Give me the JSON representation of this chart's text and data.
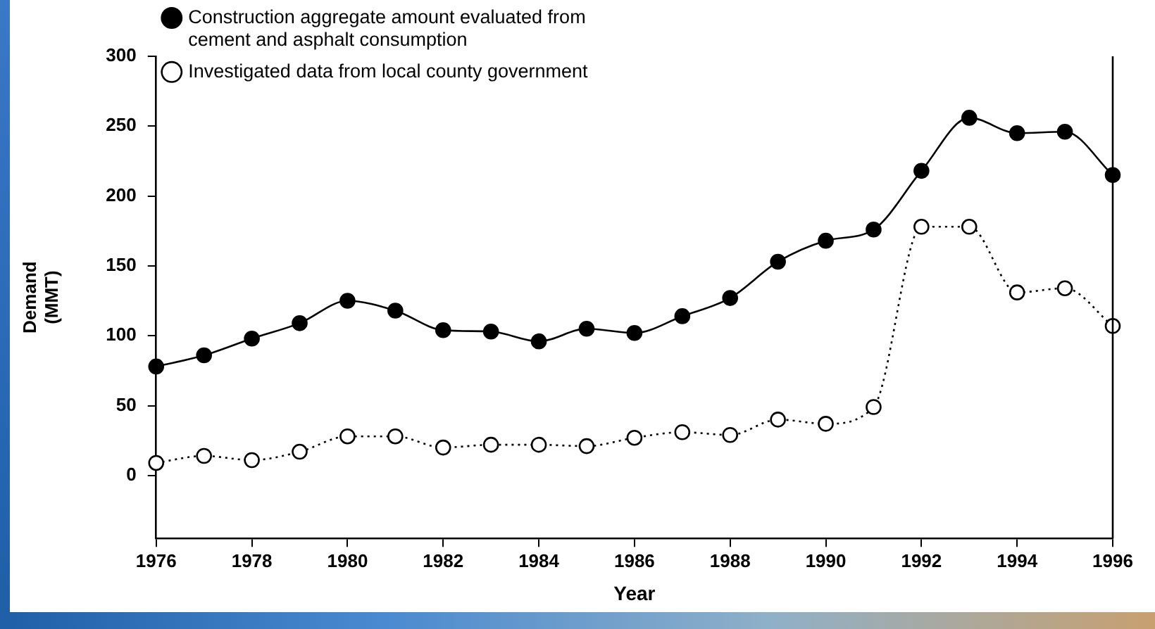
{
  "chart_data": {
    "type": "line",
    "xlabel": "Year",
    "ylabel": "Demand\n(MMT)",
    "x": [
      1976,
      1977,
      1978,
      1979,
      1980,
      1981,
      1982,
      1983,
      1984,
      1985,
      1986,
      1987,
      1988,
      1989,
      1990,
      1991,
      1992,
      1993,
      1994,
      1995,
      1996
    ],
    "series": [
      {
        "name": "Construction aggregate amount evaluated from\ncement and asphalt consumption",
        "color": "#000000",
        "line_style": "solid",
        "values": [
          78,
          86,
          98,
          109,
          125,
          118,
          104,
          103,
          96,
          105,
          102,
          114,
          127,
          153,
          168,
          176,
          218,
          256,
          245,
          246,
          215
        ]
      },
      {
        "name": "Investigated data from local county government",
        "color": "#000000",
        "line_style": "dotted",
        "values": [
          9,
          14,
          11,
          17,
          28,
          28,
          20,
          22,
          22,
          21,
          27,
          31,
          29,
          40,
          37,
          49,
          178,
          178,
          131,
          134,
          107
        ]
      }
    ],
    "xlim": [
      1976,
      1996
    ],
    "xticks": [
      1976,
      1978,
      1980,
      1982,
      1984,
      1986,
      1988,
      1990,
      1992,
      1994,
      1996
    ],
    "ylim": [
      -45,
      300
    ],
    "yticks": [
      0,
      50,
      100,
      150,
      200,
      250,
      300
    ],
    "grid": false,
    "legend": "top left",
    "marker": "circle"
  }
}
